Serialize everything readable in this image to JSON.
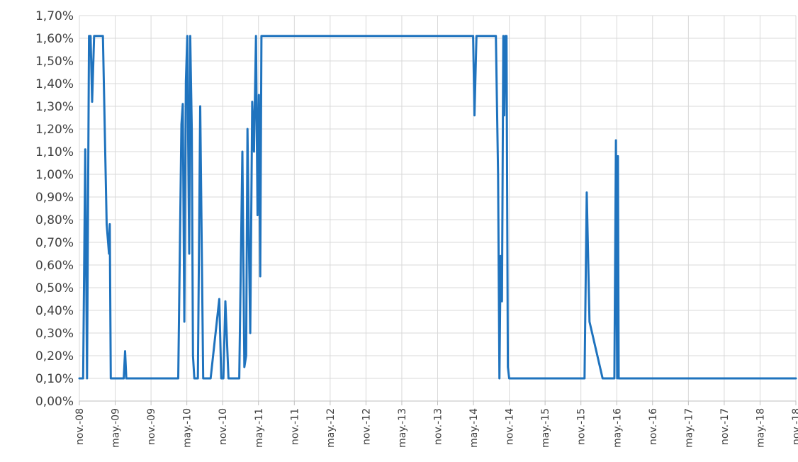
{
  "chart_data": {
    "type": "line",
    "title": "",
    "xlabel": "",
    "ylabel": "",
    "ylim": [
      0,
      1.7
    ],
    "y_unit": "%",
    "y_ticks": [
      0,
      0.1,
      0.2,
      0.3,
      0.4,
      0.5,
      0.6,
      0.7,
      0.8,
      0.9,
      1.0,
      1.1,
      1.2,
      1.3,
      1.4,
      1.5,
      1.6,
      1.7
    ],
    "y_tick_labels": [
      "0,00%",
      "0,10%",
      "0,20%",
      "0,30%",
      "0,40%",
      "0,50%",
      "0,60%",
      "0,70%",
      "0,80%",
      "0,90%",
      "1,00%",
      "1,10%",
      "1,20%",
      "1,30%",
      "1,40%",
      "1,50%",
      "1,60%",
      "1,70%"
    ],
    "x_tick_labels": [
      "nov.-08",
      "may.-09",
      "nov.-09",
      "may.-10",
      "nov.-10",
      "may.-11",
      "nov.-11",
      "may.-12",
      "nov.-12",
      "may.-13",
      "nov.-13",
      "may.-14",
      "nov.-14",
      "may.-15",
      "nov.-15",
      "may.-16",
      "nov.-16",
      "may.-17",
      "nov.-17",
      "may.-18",
      "nov.-18"
    ],
    "grid": true,
    "legend": "none",
    "color": "#1f73be",
    "series": [
      {
        "x": [
          "2008-11-01",
          "2008-11-20",
          "2008-12-01",
          "2008-12-10",
          "2008-12-20",
          "2008-12-28",
          "2009-01-05",
          "2009-01-15",
          "2009-01-22",
          "2009-01-28",
          "2009-02-05",
          "2009-02-15",
          "2009-03-01",
          "2009-03-20",
          "2009-04-01",
          "2009-04-05",
          "2009-04-10",
          "2009-04-15",
          "2009-04-25",
          "2009-05-10",
          "2009-06-15",
          "2009-06-22",
          "2009-06-28",
          "2009-07-10",
          "2009-09-01",
          "2009-11-01",
          "2010-02-01",
          "2010-03-20",
          "2010-04-05",
          "2010-04-12",
          "2010-04-20",
          "2010-04-28",
          "2010-05-05",
          "2010-05-10",
          "2010-05-15",
          "2010-05-20",
          "2010-05-28",
          "2010-06-03",
          "2010-06-10",
          "2010-06-15",
          "2010-06-22",
          "2010-06-28",
          "2010-07-10",
          "2010-07-25",
          "2010-08-03",
          "2010-08-10",
          "2010-08-25",
          "2010-09-01",
          "2010-10-15",
          "2010-10-25",
          "2010-11-05",
          "2010-11-15",
          "2010-12-01",
          "2010-12-15",
          "2010-12-25",
          "2011-01-05",
          "2011-01-25",
          "2011-02-10",
          "2011-02-20",
          "2011-03-01",
          "2011-03-08",
          "2011-03-15",
          "2011-03-22",
          "2011-04-01",
          "2011-04-10",
          "2011-04-20",
          "2011-04-28",
          "2011-05-05",
          "2011-05-12",
          "2011-05-18",
          "2011-05-25",
          "2011-06-01",
          "2011-06-07",
          "2011-06-12",
          "2011-06-18",
          "2011-06-25",
          "2011-07-02",
          "2011-07-10",
          "2011-07-20",
          "2011-08-15",
          "2012-06-01",
          "2013-06-01",
          "2014-04-01",
          "2014-04-25",
          "2014-05-01",
          "2014-05-08",
          "2014-05-18",
          "2014-06-01",
          "2014-08-15",
          "2014-08-25",
          "2014-09-05",
          "2014-09-12",
          "2014-09-18",
          "2014-09-25",
          "2014-10-02",
          "2014-10-07",
          "2014-10-12",
          "2014-10-18",
          "2014-10-25",
          "2014-11-01",
          "2014-11-10",
          "2014-11-25",
          "2015-06-01",
          "2015-11-01",
          "2015-11-20",
          "2015-12-01",
          "2015-12-15",
          "2016-02-20",
          "2016-04-01",
          "2016-04-20",
          "2016-04-28",
          "2016-05-04",
          "2016-05-08",
          "2016-05-12",
          "2016-05-20",
          "2016-05-30",
          "2017-01-01",
          "2018-01-01",
          "2018-11-01"
        ],
        "values": [
          0.1,
          0.1,
          1.11,
          0.1,
          1.61,
          1.61,
          1.32,
          1.61,
          1.61,
          1.61,
          1.61,
          1.61,
          1.61,
          0.78,
          0.65,
          0.78,
          0.1,
          0.1,
          0.1,
          0.1,
          0.1,
          0.22,
          0.1,
          0.1,
          0.1,
          0.1,
          0.1,
          0.1,
          1.22,
          1.31,
          0.35,
          1.41,
          1.61,
          1.12,
          0.65,
          1.61,
          1.2,
          0.2,
          0.1,
          0.1,
          0.1,
          0.1,
          1.3,
          0.1,
          0.1,
          0.1,
          0.1,
          0.1,
          0.45,
          0.1,
          0.1,
          0.44,
          0.1,
          0.1,
          0.1,
          0.1,
          0.1,
          1.1,
          0.15,
          0.2,
          1.2,
          0.7,
          0.3,
          1.32,
          1.1,
          1.61,
          0.82,
          1.35,
          0.55,
          1.61,
          1.61,
          1.61,
          1.61,
          1.61,
          1.61,
          1.61,
          1.61,
          1.61,
          1.61,
          1.61,
          1.61,
          1.61,
          1.61,
          1.61,
          1.61,
          1.26,
          1.61,
          1.61,
          1.61,
          1.61,
          1.0,
          0.1,
          0.64,
          0.44,
          1.61,
          1.26,
          1.61,
          1.61,
          0.15,
          0.1,
          0.1,
          0.1,
          0.1,
          0.1,
          0.1,
          0.92,
          0.35,
          0.1,
          0.1,
          0.1,
          1.15,
          0.1,
          1.08,
          0.1,
          0.1,
          0.1,
          0.1,
          0.1,
          0.1
        ]
      }
    ]
  }
}
